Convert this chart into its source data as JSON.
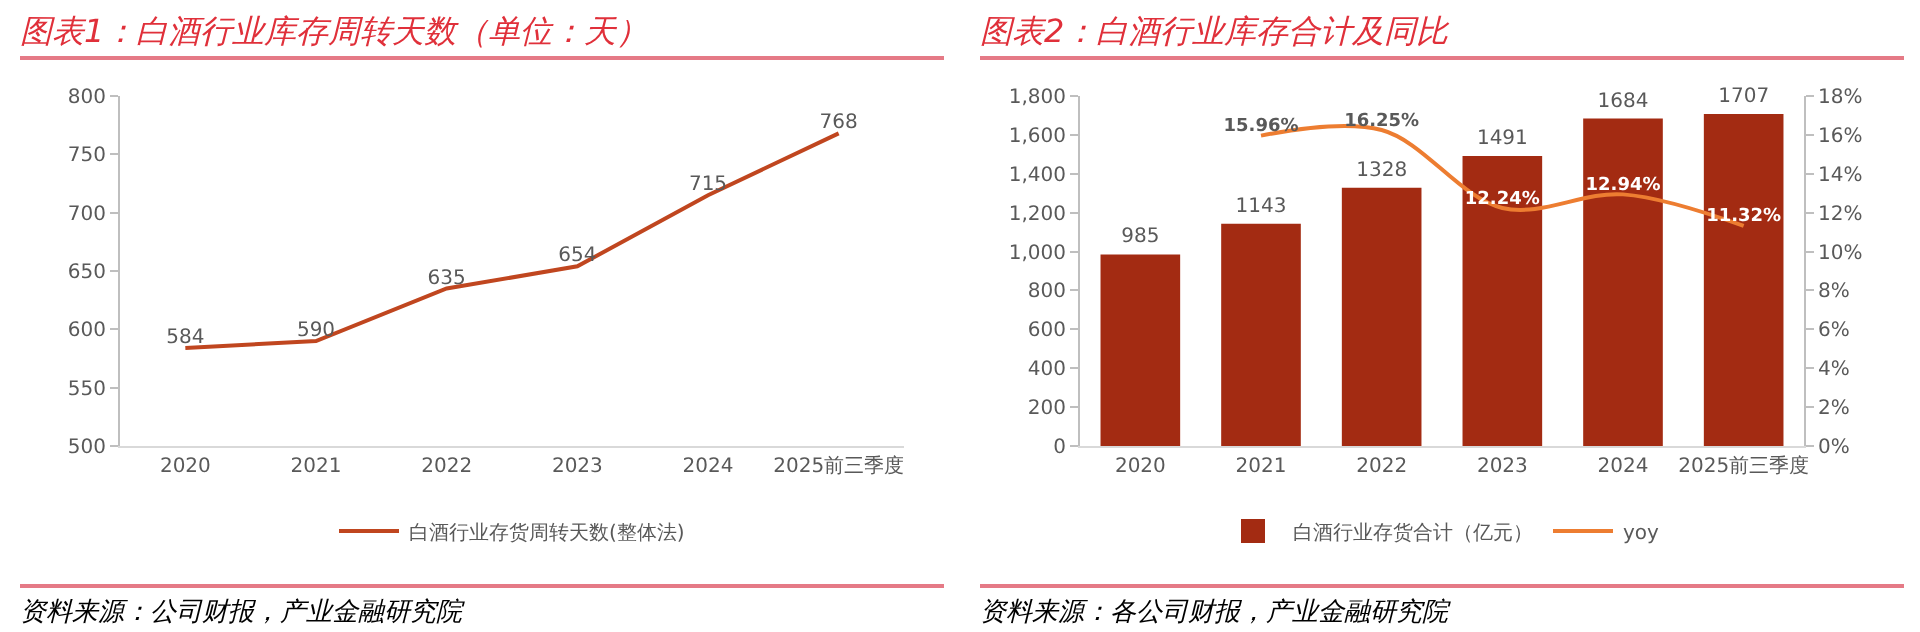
{
  "chart_data": [
    {
      "type": "line",
      "title": "图表1：白酒行业库存周转天数（单位：天）",
      "categories": [
        "2020",
        "2021",
        "2022",
        "2023",
        "2024",
        "2025前三季度"
      ],
      "series": [
        {
          "name": "白酒行业存货周转天数(整体法)",
          "color": "#c0461f",
          "values": [
            584,
            590,
            635,
            654,
            715,
            768
          ]
        }
      ],
      "ylim": [
        500,
        800
      ],
      "yticks": [
        500,
        550,
        600,
        650,
        700,
        750,
        800
      ],
      "data_labels": true,
      "legend": "bottom",
      "marker": "none",
      "line_style": "solid",
      "annotations": [
        "资料来源：公司财报，产业金融研究院"
      ]
    },
    {
      "type": "bar",
      "title": "图表2：白酒行业库存合计及同比",
      "categories": [
        "2020",
        "2021",
        "2022",
        "2023",
        "2024",
        "2025前三季度"
      ],
      "series": [
        {
          "name": "白酒行业存货合计（亿元）",
          "color": "#a32b12",
          "values": [
            985,
            1143,
            1328,
            1491,
            1684,
            1707
          ]
        },
        {
          "name": "yoy",
          "type": "line",
          "axis": "y2",
          "color": "#ed7d31",
          "values": [
            null,
            15.96,
            16.25,
            12.24,
            12.94,
            11.32
          ],
          "value_labels": [
            null,
            "15.96%",
            "16.25%",
            "12.24%",
            "12.94%",
            "11.32%"
          ]
        }
      ],
      "ylim": [
        0,
        1800
      ],
      "yticks": [
        {
          "value": 0,
          "label": "0"
        },
        {
          "value": 200,
          "label": "200"
        },
        {
          "value": 400,
          "label": "400"
        },
        {
          "value": 600,
          "label": "600"
        },
        {
          "value": 800,
          "label": "800"
        },
        {
          "value": 1000,
          "label": "1,000"
        },
        {
          "value": 1200,
          "label": "1,200"
        },
        {
          "value": 1400,
          "label": "1,400"
        },
        {
          "value": 1600,
          "label": "1,600"
        },
        {
          "value": 1800,
          "label": "1,800"
        }
      ],
      "y2lim": [
        0,
        18
      ],
      "y2ticks": [
        {
          "value": 0,
          "label": "0%"
        },
        {
          "value": 2,
          "label": "2%"
        },
        {
          "value": 4,
          "label": "4%"
        },
        {
          "value": 6,
          "label": "6%"
        },
        {
          "value": 8,
          "label": "8%"
        },
        {
          "value": 10,
          "label": "10%"
        },
        {
          "value": 12,
          "label": "12%"
        },
        {
          "value": 14,
          "label": "14%"
        },
        {
          "value": 16,
          "label": "16%"
        },
        {
          "value": 18,
          "label": "18%"
        }
      ],
      "data_labels": true,
      "legend": "bottom",
      "marker": "none",
      "line_style": "solid",
      "annotations": [
        "资料来源：各公司财报，产业金融研究院"
      ]
    }
  ]
}
